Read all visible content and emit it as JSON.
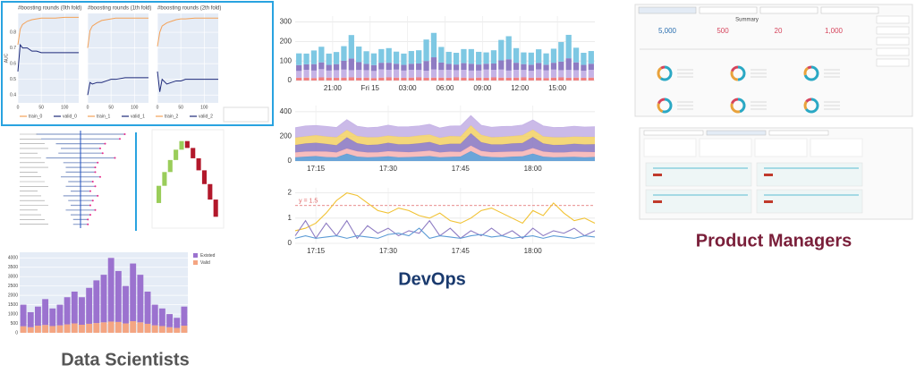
{
  "auc_panel": {
    "titles": [
      "#boosting rounds (0th fold)",
      "#boosting rounds (1th fold)",
      "#boosting rounds (2th fold)"
    ],
    "ylabel": "AUC",
    "ylim": [
      0.35,
      0.92
    ],
    "yticks": [
      0.4,
      0.5,
      0.6,
      0.7,
      0.8
    ],
    "xlim": [
      0,
      130
    ],
    "xticks": [
      0,
      50,
      100
    ],
    "x": [
      0,
      5,
      10,
      20,
      30,
      40,
      50,
      60,
      80,
      100,
      120,
      130
    ],
    "legend": [
      {
        "name": "train_0",
        "color": "#f4a259"
      },
      {
        "name": "valid_0",
        "color": "#1f2a7a"
      },
      {
        "name": "train_1",
        "color": "#f4a259"
      },
      {
        "name": "valid_1",
        "color": "#1f2a7a"
      },
      {
        "name": "train_2",
        "color": "#f4a259"
      },
      {
        "name": "valid_2",
        "color": "#1f2a7a"
      }
    ],
    "folds": [
      {
        "train": [
          0.72,
          0.82,
          0.85,
          0.87,
          0.88,
          0.885,
          0.89,
          0.89,
          0.89,
          0.895,
          0.895,
          0.895
        ],
        "valid": [
          0.55,
          0.72,
          0.7,
          0.7,
          0.68,
          0.68,
          0.67,
          0.67,
          0.67,
          0.67,
          0.67,
          0.67
        ]
      },
      {
        "train": [
          0.7,
          0.81,
          0.84,
          0.86,
          0.875,
          0.88,
          0.885,
          0.89,
          0.89,
          0.89,
          0.89,
          0.89
        ],
        "valid": [
          0.4,
          0.48,
          0.47,
          0.48,
          0.48,
          0.49,
          0.5,
          0.5,
          0.51,
          0.51,
          0.51,
          0.51
        ]
      },
      {
        "train": [
          0.71,
          0.8,
          0.84,
          0.86,
          0.87,
          0.88,
          0.885,
          0.885,
          0.89,
          0.89,
          0.89,
          0.89
        ],
        "valid": [
          0.55,
          0.42,
          0.5,
          0.47,
          0.48,
          0.49,
          0.49,
          0.5,
          0.5,
          0.5,
          0.5,
          0.5
        ]
      }
    ]
  },
  "feature_panel": {
    "spreads": [
      0.9,
      0.8,
      0.5,
      0.4,
      0.45,
      0.7,
      0.35,
      0.3,
      0.3,
      0.4,
      0.25,
      0.3,
      0.2,
      0.35,
      0.25,
      0.2,
      0.3,
      0.2,
      0.15,
      0.15
    ],
    "contributions": [
      0.5,
      0.4,
      0.35,
      0.3,
      0.25,
      -0.2,
      -0.3,
      -0.35,
      -0.4,
      -0.45,
      -0.5
    ],
    "ylim": [
      -0.6,
      2.0
    ]
  },
  "histogram": {
    "ylim": [
      0,
      4300
    ],
    "yticks": [
      0,
      500,
      1000,
      1500,
      2000,
      2500,
      3000,
      3500,
      4000
    ],
    "series": [
      {
        "name": "Valid",
        "color": "#f4a582",
        "values": [
          350,
          300,
          380,
          420,
          360,
          400,
          450,
          500,
          430,
          480,
          520,
          560,
          600,
          580,
          500,
          620,
          560,
          480,
          400,
          360,
          300,
          260,
          380
        ]
      },
      {
        "name": "Existed",
        "color": "#9b72cf",
        "values": [
          1150,
          800,
          1020,
          1380,
          940,
          1100,
          1450,
          1700,
          1470,
          1920,
          2280,
          2540,
          3400,
          2720,
          2000,
          3080,
          2540,
          1720,
          1100,
          940,
          700,
          540,
          1020
        ]
      }
    ]
  },
  "ops_bars": {
    "xlim": [
      0,
      40
    ],
    "ylim": [
      0,
      330
    ],
    "yticks": [
      0,
      100,
      200,
      300
    ],
    "xticks": [
      {
        "value": 5,
        "label": "21:00"
      },
      {
        "value": 10,
        "label": "Fri 15"
      },
      {
        "value": 15,
        "label": "03:00"
      },
      {
        "value": 20,
        "label": "06:00"
      },
      {
        "value": 25,
        "label": "09:00"
      },
      {
        "value": 30,
        "label": "12:00"
      },
      {
        "value": 35,
        "label": "15:00"
      }
    ],
    "series": [
      {
        "color": "#f08080",
        "values": [
          14,
          15,
          13,
          16,
          15,
          14,
          15,
          16,
          14,
          15,
          13,
          15,
          16,
          15,
          14,
          15,
          16,
          14,
          15,
          15,
          14,
          16,
          15,
          13,
          15,
          14,
          16,
          15,
          14,
          15,
          16,
          14,
          15,
          13,
          15,
          16,
          14,
          15,
          14,
          15
        ]
      },
      {
        "color": "#c5b3e6",
        "values": [
          35,
          40,
          38,
          42,
          36,
          39,
          41,
          37,
          40,
          38,
          36,
          42,
          39,
          41,
          37,
          40,
          38,
          36,
          42,
          39,
          41,
          37,
          40,
          38,
          36,
          42,
          39,
          41,
          37,
          40,
          38,
          36,
          42,
          39,
          41,
          37,
          40,
          38,
          36,
          40
        ]
      },
      {
        "color": "#8e7cc3",
        "values": [
          30,
          28,
          33,
          35,
          29,
          31,
          45,
          60,
          40,
          32,
          30,
          34,
          36,
          30,
          29,
          31,
          33,
          50,
          62,
          38,
          30,
          29,
          34,
          35,
          31,
          30,
          32,
          47,
          58,
          36,
          30,
          31,
          33,
          29,
          35,
          44,
          60,
          40,
          30,
          31
        ]
      },
      {
        "color": "#7ec8e3",
        "values": [
          60,
          55,
          70,
          80,
          58,
          62,
          75,
          120,
          80,
          65,
          60,
          70,
          75,
          62,
          58,
          65,
          68,
          110,
          125,
          80,
          62,
          60,
          72,
          75,
          65,
          58,
          68,
          105,
          118,
          75,
          60,
          62,
          70,
          58,
          72,
          100,
          120,
          75,
          62,
          65
        ]
      }
    ]
  },
  "ops_area": {
    "xlim": [
      0,
      29
    ],
    "ylim": [
      0,
      450
    ],
    "yticks": [
      0,
      200,
      400
    ],
    "xticks": [
      {
        "value": 2,
        "label": "17:15"
      },
      {
        "value": 9,
        "label": "17:30"
      },
      {
        "value": 16,
        "label": "17:45"
      },
      {
        "value": 23,
        "label": "18:00"
      }
    ],
    "series": [
      {
        "color": "#5b9bd5",
        "values": [
          30,
          35,
          40,
          32,
          30,
          60,
          35,
          30,
          33,
          38,
          30,
          32,
          35,
          40,
          30,
          34,
          36,
          80,
          40,
          32,
          30,
          35,
          38,
          60,
          35,
          30,
          32,
          34,
          30,
          33
        ]
      },
      {
        "color": "#f7b6b6",
        "values": [
          40,
          42,
          38,
          45,
          40,
          42,
          44,
          40,
          38,
          42,
          45,
          40,
          42,
          44,
          40,
          42,
          38,
          45,
          42,
          40,
          44,
          42,
          40,
          45,
          42,
          40,
          38,
          42,
          44,
          40
        ]
      },
      {
        "color": "#8e7cc3",
        "values": [
          60,
          65,
          70,
          62,
          58,
          90,
          65,
          60,
          62,
          68,
          60,
          64,
          66,
          70,
          60,
          64,
          66,
          100,
          70,
          62,
          60,
          65,
          68,
          90,
          65,
          60,
          62,
          64,
          60,
          63
        ]
      },
      {
        "color": "#f3d36b",
        "values": [
          60,
          58,
          62,
          60,
          64,
          60,
          58,
          62,
          60,
          58,
          62,
          60,
          64,
          60,
          58,
          62,
          60,
          64,
          60,
          58,
          62,
          60,
          64,
          60,
          58,
          62,
          60,
          58,
          62,
          60
        ]
      },
      {
        "color": "#c5b3e6",
        "values": [
          80,
          85,
          78,
          82,
          80,
          84,
          80,
          78,
          82,
          85,
          80,
          82,
          78,
          84,
          80,
          82,
          85,
          80,
          78,
          82,
          84,
          80,
          82,
          78,
          85,
          80,
          82,
          84,
          80,
          82
        ]
      }
    ]
  },
  "ops_lines": {
    "xlim": [
      0,
      29
    ],
    "ylim": [
      0,
      2.2
    ],
    "yticks": [
      0,
      1,
      2
    ],
    "xticks": [
      {
        "value": 2,
        "label": "17:15"
      },
      {
        "value": 9,
        "label": "17:30"
      },
      {
        "value": 16,
        "label": "17:45"
      },
      {
        "value": 23,
        "label": "18:00"
      }
    ],
    "threshold": {
      "value": 1.5,
      "label": "y = 1.5"
    },
    "series": [
      {
        "color": "#f1c232",
        "values": [
          0.5,
          0.6,
          0.8,
          1.2,
          1.7,
          2.0,
          1.9,
          1.6,
          1.3,
          1.2,
          1.4,
          1.3,
          1.1,
          1.0,
          1.2,
          0.9,
          0.8,
          1.0,
          1.3,
          1.4,
          1.2,
          1.0,
          0.8,
          1.3,
          1.1,
          1.6,
          1.2,
          0.9,
          1.0,
          0.8
        ]
      },
      {
        "color": "#8e7cc3",
        "values": [
          0.3,
          0.9,
          0.2,
          0.8,
          0.3,
          0.9,
          0.2,
          0.7,
          0.4,
          0.6,
          0.3,
          0.5,
          0.4,
          0.9,
          0.3,
          0.6,
          0.2,
          0.5,
          0.3,
          0.6,
          0.3,
          0.5,
          0.2,
          0.6,
          0.3,
          0.5,
          0.4,
          0.6,
          0.3,
          0.5
        ]
      },
      {
        "color": "#5b9bd5",
        "values": [
          0.2,
          0.3,
          0.2,
          0.25,
          0.3,
          0.2,
          0.3,
          0.25,
          0.2,
          0.35,
          0.4,
          0.3,
          0.6,
          0.2,
          0.3,
          0.25,
          0.2,
          0.3,
          0.35,
          0.25,
          0.3,
          0.2,
          0.25,
          0.3,
          0.2,
          0.3,
          0.25,
          0.2,
          0.3,
          0.25
        ]
      }
    ]
  },
  "pm_panel": {
    "summary_title": "Summary",
    "kpis": [
      "5,000",
      "500",
      "20",
      "1,000"
    ],
    "donuts": [
      [
        60,
        30,
        10
      ],
      [
        50,
        30,
        20
      ],
      [
        70,
        20,
        10
      ],
      [
        55,
        25,
        20
      ],
      [
        45,
        35,
        20
      ],
      [
        65,
        20,
        15
      ]
    ],
    "donut_colors": [
      "#2aa8c4",
      "#e9a23b",
      "#d6455d"
    ]
  },
  "captions": {
    "data_scientists": "Data Scientists",
    "devops": "DevOps",
    "product_managers": "Product Managers"
  }
}
